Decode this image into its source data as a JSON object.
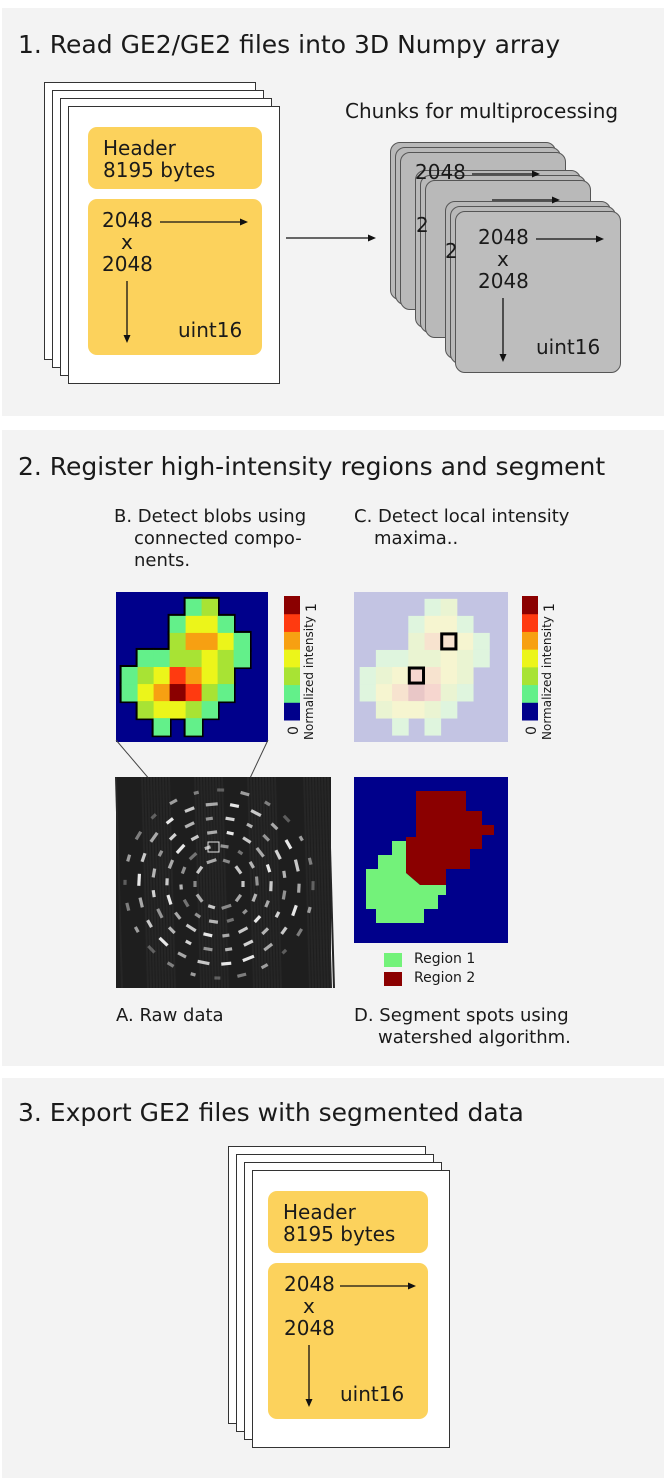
{
  "step1": {
    "title": "1. Read GE2/GE2 files into 3D Numpy array",
    "header_line1": "Header",
    "header_line2": "8195 bytes",
    "dim_top": "2048",
    "dim_x": "x",
    "dim_bottom": "2048",
    "dtype": "uint16",
    "chunks_label": "Chunks for multiprocessing",
    "chunk_dim_top": "2048",
    "chunk_dim_x": "x",
    "chunk_dim_bottom": "2048",
    "chunk_dtype": "uint16"
  },
  "step2": {
    "title": "2. Register high-intensity regions and segment",
    "caption_b": [
      "B. Detect blobs using",
      "connected compo-",
      "nents."
    ],
    "caption_c": [
      "C. Detect local intensity",
      "maxima.."
    ],
    "caption_a": "A. Raw data",
    "caption_d": [
      "D. Segment spots using",
      "watershed algorithm."
    ],
    "colorbar_label": "Normalized intensity",
    "colorbar_min": "0",
    "colorbar_max": "1",
    "colorbar_colors": [
      "#00008b",
      "#63f08a",
      "#a8e334",
      "#ecf51a",
      "#f7a012",
      "#ff3a10",
      "#8b0000"
    ],
    "legend": [
      {
        "label": "Region 1",
        "color": "#73f27a"
      },
      {
        "label": "Region 2",
        "color": "#8b0000"
      }
    ]
  },
  "step3": {
    "title": "3. Export GE2 files with segmented data",
    "header_line1": "Header",
    "header_line2": "8195 bytes",
    "dim_top": "2048",
    "dim_x": "x",
    "dim_bottom": "2048",
    "dtype": "uint16"
  }
}
